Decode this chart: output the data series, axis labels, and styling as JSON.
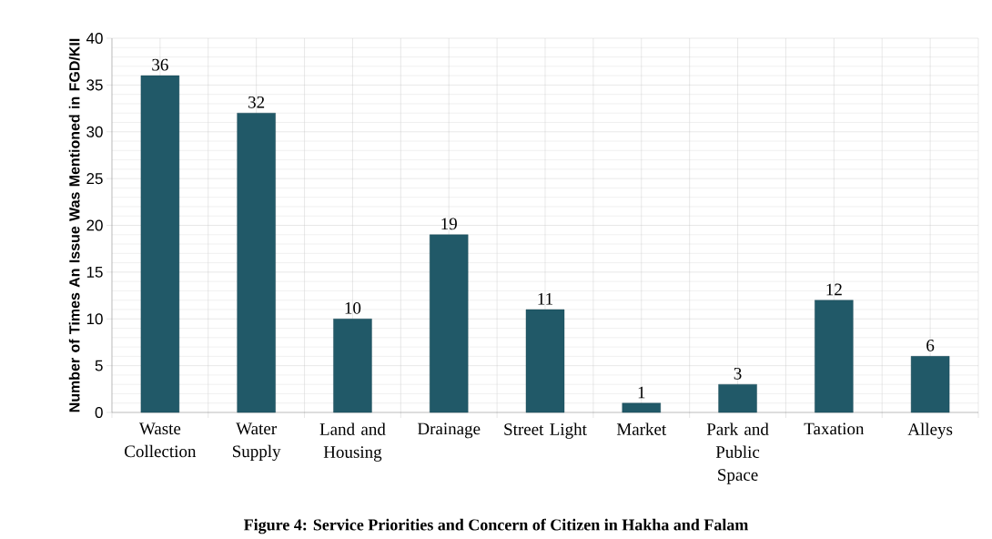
{
  "chart_data": {
    "type": "bar",
    "title": "Figure 4: Service Priorities  and Concern of Citizen  in  Hakha and Falam",
    "ylabel": "Number of Times An Issue Was Mentioned in FGD/KII",
    "categories": [
      "Waste Collection",
      "Water Supply",
      "Land and Housing",
      "Drainage",
      "Street Light",
      "Market",
      "Park and Public Space",
      "Taxation",
      "Alleys"
    ],
    "values": [
      36,
      32,
      10,
      19,
      11,
      1,
      3,
      12,
      6
    ],
    "color": "#215968",
    "ylim": [
      0,
      40
    ],
    "yticks": [
      0,
      5,
      10,
      15,
      20,
      25,
      30,
      35,
      40
    ],
    "grid": true,
    "data_labels": true
  }
}
